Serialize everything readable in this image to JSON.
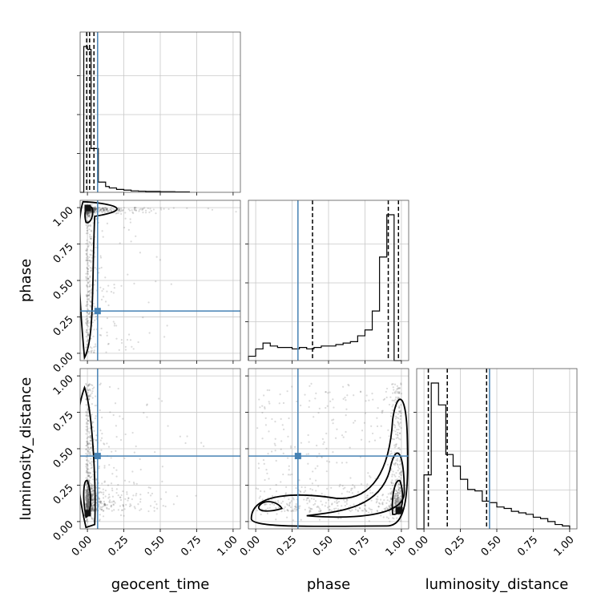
{
  "chart_data": {
    "type": "corner",
    "parameters": [
      "geocent_time",
      "phase",
      "luminosity_distance"
    ],
    "ticks": [
      "0.00",
      "0.25",
      "0.50",
      "0.75",
      "1.00"
    ],
    "axis_range": [
      -0.05,
      1.05
    ],
    "grid": true,
    "truths": {
      "geocent_time": 0.07,
      "phase": 0.29,
      "luminosity_distance": 0.45
    },
    "truth_color": "#4682b4",
    "quantiles": {
      "geocent_time": [
        -0.005,
        0.015,
        0.045
      ],
      "phase": [
        0.39,
        0.91,
        0.98
      ],
      "luminosity_distance": [
        0.03,
        0.16,
        0.43
      ]
    },
    "histograms": {
      "geocent_time": {
        "bin_edges": [
          -0.05,
          -0.025,
          0.0,
          0.025,
          0.05,
          0.075,
          0.1,
          0.125,
          0.15,
          0.2,
          0.25,
          0.3,
          0.35,
          0.4,
          0.45,
          0.5,
          0.6,
          0.7
        ],
        "counts": [
          0,
          1.0,
          0.98,
          0.3,
          0.3,
          0.07,
          0.07,
          0.04,
          0.03,
          0.02,
          0.015,
          0.01,
          0.008,
          0.006,
          0.006,
          0.004,
          0.003
        ]
      },
      "phase": {
        "bin_edges": [
          -0.05,
          0.0,
          0.05,
          0.1,
          0.15,
          0.2,
          0.25,
          0.3,
          0.35,
          0.4,
          0.45,
          0.5,
          0.55,
          0.6,
          0.65,
          0.7,
          0.75,
          0.8,
          0.85,
          0.9,
          0.95,
          1.0
        ],
        "counts": [
          0.03,
          0.08,
          0.12,
          0.1,
          0.09,
          0.09,
          0.08,
          0.09,
          0.08,
          0.09,
          0.1,
          0.1,
          0.11,
          0.12,
          0.13,
          0.17,
          0.21,
          0.34,
          0.71,
          1.0,
          0
        ]
      },
      "luminosity_distance": {
        "bin_edges": [
          -0.05,
          0.0,
          0.05,
          0.1,
          0.15,
          0.2,
          0.25,
          0.3,
          0.35,
          0.4,
          0.45,
          0.5,
          0.55,
          0.6,
          0.65,
          0.7,
          0.75,
          0.8,
          0.85,
          0.9,
          0.95,
          1.0
        ],
        "counts": [
          0,
          0.37,
          1.0,
          0.85,
          0.51,
          0.43,
          0.34,
          0.27,
          0.26,
          0.19,
          0.18,
          0.15,
          0.14,
          0.12,
          0.11,
          0.1,
          0.08,
          0.07,
          0.05,
          0.03,
          0.02
        ]
      }
    }
  }
}
